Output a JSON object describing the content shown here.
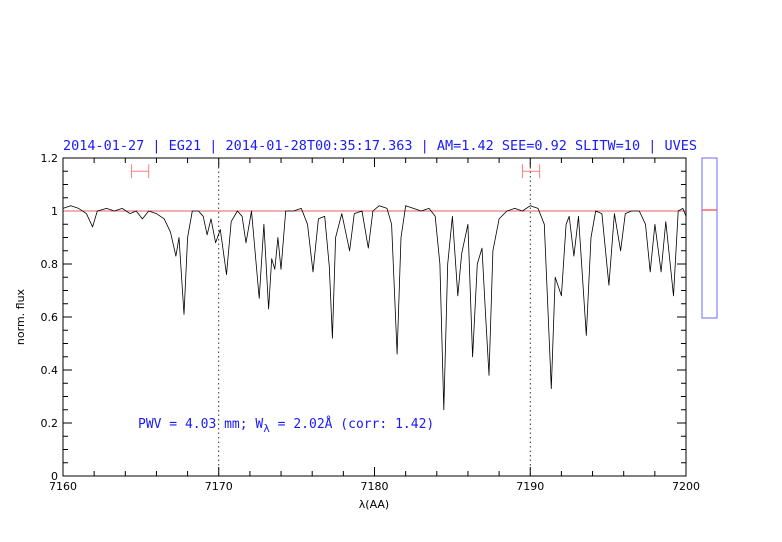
{
  "chart_data": {
    "type": "line",
    "title": "2014-01-27 | EG21 | 2014-01-28T00:35:17.363 | AM=1.42 SEE=0.92 SLITW=10 | UVES",
    "xlabel": "λ(AA)",
    "ylabel": "norm. flux",
    "xlim": [
      7160,
      7200
    ],
    "ylim": [
      0,
      1.2
    ],
    "x_ticks": [
      "7160",
      "7170",
      "7180",
      "7190",
      "7200"
    ],
    "y_ticks": [
      "0",
      "0.2",
      "0.4",
      "0.6",
      "0.8",
      "1",
      "1.2"
    ],
    "x_minor_step": 2,
    "y_minor_step": 0.05,
    "grid": false,
    "reference_line": {
      "y": 1.0,
      "color": "#e06060"
    },
    "vertical_dotted_lines": [
      7170,
      7190
    ],
    "range_markers": [
      {
        "x": [
          7164.4,
          7165.5
        ],
        "y": 1.15,
        "color": "#ff8080"
      },
      {
        "x": [
          7189.5,
          7190.6
        ],
        "y": 1.15,
        "color": "#ff8080"
      }
    ],
    "annotation": {
      "pwv": "PWV = 4.03 mm; W",
      "sub": "λ",
      "rest": " = 2.02Å (corr: 1.42)"
    },
    "side_indicator": {
      "border_color": "#6a6aff",
      "marker_color": "#ff6060",
      "level": 1.0
    },
    "series": [
      {
        "color": "#000000",
        "points": [
          [
            7160.0,
            1.01
          ],
          [
            7160.5,
            1.02
          ],
          [
            7161.0,
            1.01
          ],
          [
            7161.5,
            0.99
          ],
          [
            7161.9,
            0.94
          ],
          [
            7162.2,
            1.0
          ],
          [
            7162.8,
            1.01
          ],
          [
            7163.3,
            1.0
          ],
          [
            7163.8,
            1.01
          ],
          [
            7164.3,
            0.99
          ],
          [
            7164.7,
            1.0
          ],
          [
            7165.1,
            0.97
          ],
          [
            7165.5,
            1.0
          ],
          [
            7166.0,
            0.99
          ],
          [
            7166.5,
            0.97
          ],
          [
            7166.9,
            0.92
          ],
          [
            7167.25,
            0.83
          ],
          [
            7167.45,
            0.9
          ],
          [
            7167.77,
            0.61
          ],
          [
            7168.0,
            0.9
          ],
          [
            7168.3,
            1.0
          ],
          [
            7168.7,
            1.0
          ],
          [
            7169.0,
            0.98
          ],
          [
            7169.25,
            0.91
          ],
          [
            7169.5,
            0.97
          ],
          [
            7169.8,
            0.88
          ],
          [
            7170.1,
            0.93
          ],
          [
            7170.5,
            0.76
          ],
          [
            7170.8,
            0.96
          ],
          [
            7171.2,
            1.0
          ],
          [
            7171.5,
            0.98
          ],
          [
            7171.75,
            0.88
          ],
          [
            7172.1,
            1.0
          ],
          [
            7172.6,
            0.67
          ],
          [
            7172.9,
            0.95
          ],
          [
            7173.2,
            0.63
          ],
          [
            7173.4,
            0.82
          ],
          [
            7173.6,
            0.78
          ],
          [
            7173.8,
            0.9
          ],
          [
            7174.0,
            0.78
          ],
          [
            7174.3,
            1.0
          ],
          [
            7174.8,
            1.0
          ],
          [
            7175.3,
            1.01
          ],
          [
            7175.7,
            0.95
          ],
          [
            7176.05,
            0.77
          ],
          [
            7176.4,
            0.97
          ],
          [
            7176.8,
            0.98
          ],
          [
            7177.1,
            0.79
          ],
          [
            7177.3,
            0.52
          ],
          [
            7177.5,
            0.9
          ],
          [
            7177.9,
            0.99
          ],
          [
            7178.4,
            0.85
          ],
          [
            7178.7,
            0.99
          ],
          [
            7179.2,
            1.0
          ],
          [
            7179.6,
            0.86
          ],
          [
            7179.9,
            1.0
          ],
          [
            7180.3,
            1.02
          ],
          [
            7180.8,
            1.01
          ],
          [
            7181.1,
            0.95
          ],
          [
            7181.45,
            0.46
          ],
          [
            7181.7,
            0.9
          ],
          [
            7182.0,
            1.02
          ],
          [
            7182.5,
            1.01
          ],
          [
            7183.0,
            1.0
          ],
          [
            7183.5,
            1.01
          ],
          [
            7183.9,
            0.98
          ],
          [
            7184.2,
            0.8
          ],
          [
            7184.45,
            0.25
          ],
          [
            7184.7,
            0.8
          ],
          [
            7185.0,
            0.98
          ],
          [
            7185.35,
            0.68
          ],
          [
            7185.6,
            0.84
          ],
          [
            7186.0,
            0.95
          ],
          [
            7186.3,
            0.45
          ],
          [
            7186.6,
            0.8
          ],
          [
            7186.9,
            0.86
          ],
          [
            7187.1,
            0.64
          ],
          [
            7187.35,
            0.38
          ],
          [
            7187.6,
            0.85
          ],
          [
            7188.0,
            0.97
          ],
          [
            7188.5,
            1.0
          ],
          [
            7189.0,
            1.01
          ],
          [
            7189.5,
            1.0
          ],
          [
            7190.0,
            1.02
          ],
          [
            7190.5,
            1.01
          ],
          [
            7190.9,
            0.95
          ],
          [
            7191.35,
            0.33
          ],
          [
            7191.6,
            0.75
          ],
          [
            7192.0,
            0.68
          ],
          [
            7192.3,
            0.95
          ],
          [
            7192.5,
            0.98
          ],
          [
            7192.8,
            0.83
          ],
          [
            7193.1,
            0.98
          ],
          [
            7193.6,
            0.53
          ],
          [
            7193.9,
            0.9
          ],
          [
            7194.2,
            1.0
          ],
          [
            7194.6,
            0.99
          ],
          [
            7195.05,
            0.72
          ],
          [
            7195.4,
            0.99
          ],
          [
            7195.8,
            0.85
          ],
          [
            7196.1,
            0.99
          ],
          [
            7196.5,
            1.0
          ],
          [
            7197.0,
            1.0
          ],
          [
            7197.4,
            0.95
          ],
          [
            7197.7,
            0.77
          ],
          [
            7198.0,
            0.95
          ],
          [
            7198.4,
            0.77
          ],
          [
            7198.7,
            0.96
          ],
          [
            7199.2,
            0.68
          ],
          [
            7199.5,
            1.0
          ],
          [
            7199.8,
            1.01
          ],
          [
            7200.0,
            0.98
          ]
        ]
      }
    ]
  }
}
